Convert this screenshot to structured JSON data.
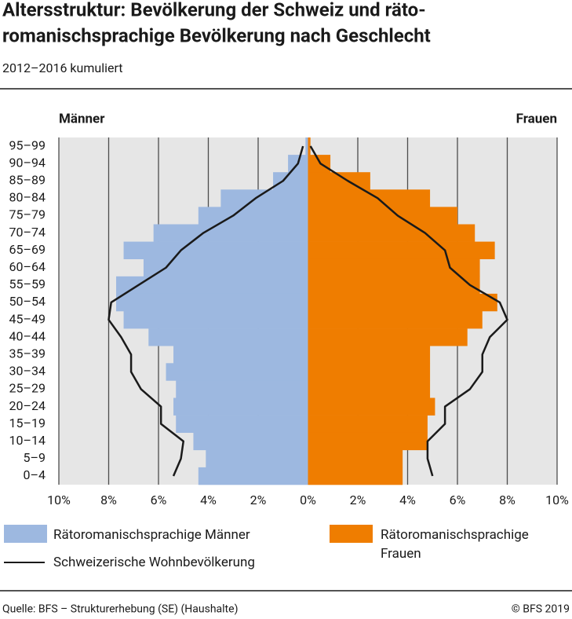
{
  "chart_data": {
    "type": "pyramid",
    "title": "Altersstruktur: Bevölkerung der Schweiz und räto-",
    "title_line2": "romanischsprachige Bevölkerung nach Geschlecht",
    "subtitle": "2012–2016 kumuliert",
    "left_label": "Männer",
    "right_label": "Frauen",
    "categories": [
      "95–99",
      "90–94",
      "85–89",
      "80–84",
      "75–79",
      "70–74",
      "65–69",
      "60–64",
      "55–59",
      "50–54",
      "45–49",
      "40–44",
      "35–39",
      "30–34",
      "25–29",
      "20–24",
      "15–19",
      "10–14",
      "5–9",
      "0–4"
    ],
    "series": [
      {
        "name": "Rätoromanischsprachige Männer",
        "color": "#9db8e0",
        "type": "bar",
        "values": [
          -0.1,
          -0.8,
          -1.4,
          -3.5,
          -4.4,
          -6.2,
          -7.4,
          -6.6,
          -7.7,
          -7.7,
          -7.4,
          -6.4,
          -5.4,
          -5.7,
          -5.3,
          -5.4,
          -5.3,
          -4.6,
          -4.1,
          -4.4
        ]
      },
      {
        "name": "Rätoromanischsprachige Frauen",
        "color": "#ef7d00",
        "type": "bar",
        "values": [
          0.1,
          0.9,
          2.5,
          4.9,
          6.0,
          6.7,
          7.5,
          6.9,
          6.9,
          7.6,
          7.0,
          6.4,
          4.9,
          4.9,
          4.9,
          5.1,
          4.8,
          4.8,
          3.8,
          3.8
        ]
      },
      {
        "name": "Schweizerische Wohnbevölkerung",
        "color": "#1a1a1a",
        "type": "line",
        "values_men": [
          -0.2,
          -0.4,
          -1.0,
          -2.1,
          -3.0,
          -4.2,
          -5.1,
          -5.7,
          -6.8,
          -7.9,
          -8.0,
          -7.5,
          -7.1,
          -7.1,
          -6.7,
          -5.9,
          -5.9,
          -5.0,
          -5.1,
          -5.4
        ],
        "values_women": [
          0.1,
          0.5,
          1.6,
          2.8,
          3.6,
          4.7,
          5.5,
          5.7,
          6.5,
          7.7,
          8.0,
          7.3,
          7.0,
          7.0,
          6.5,
          5.5,
          5.5,
          4.8,
          4.8,
          5.0
        ]
      }
    ],
    "xlim": [
      -10,
      10
    ],
    "xticks": [
      {
        "value": -10,
        "label": "10%"
      },
      {
        "value": -8,
        "label": "8%"
      },
      {
        "value": -6,
        "label": "6%"
      },
      {
        "value": -4,
        "label": "4%"
      },
      {
        "value": -2,
        "label": "2%"
      },
      {
        "value": 0,
        "label": "0%"
      },
      {
        "value": 2,
        "label": "2%"
      },
      {
        "value": 4,
        "label": "4%"
      },
      {
        "value": 6,
        "label": "6%"
      },
      {
        "value": 8,
        "label": "8%"
      },
      {
        "value": 10,
        "label": "10%"
      }
    ],
    "grid": true,
    "source": "Quelle: BFS – Strukturerhebung (SE) (Haushalte)",
    "copyright": "© BFS 2019"
  }
}
